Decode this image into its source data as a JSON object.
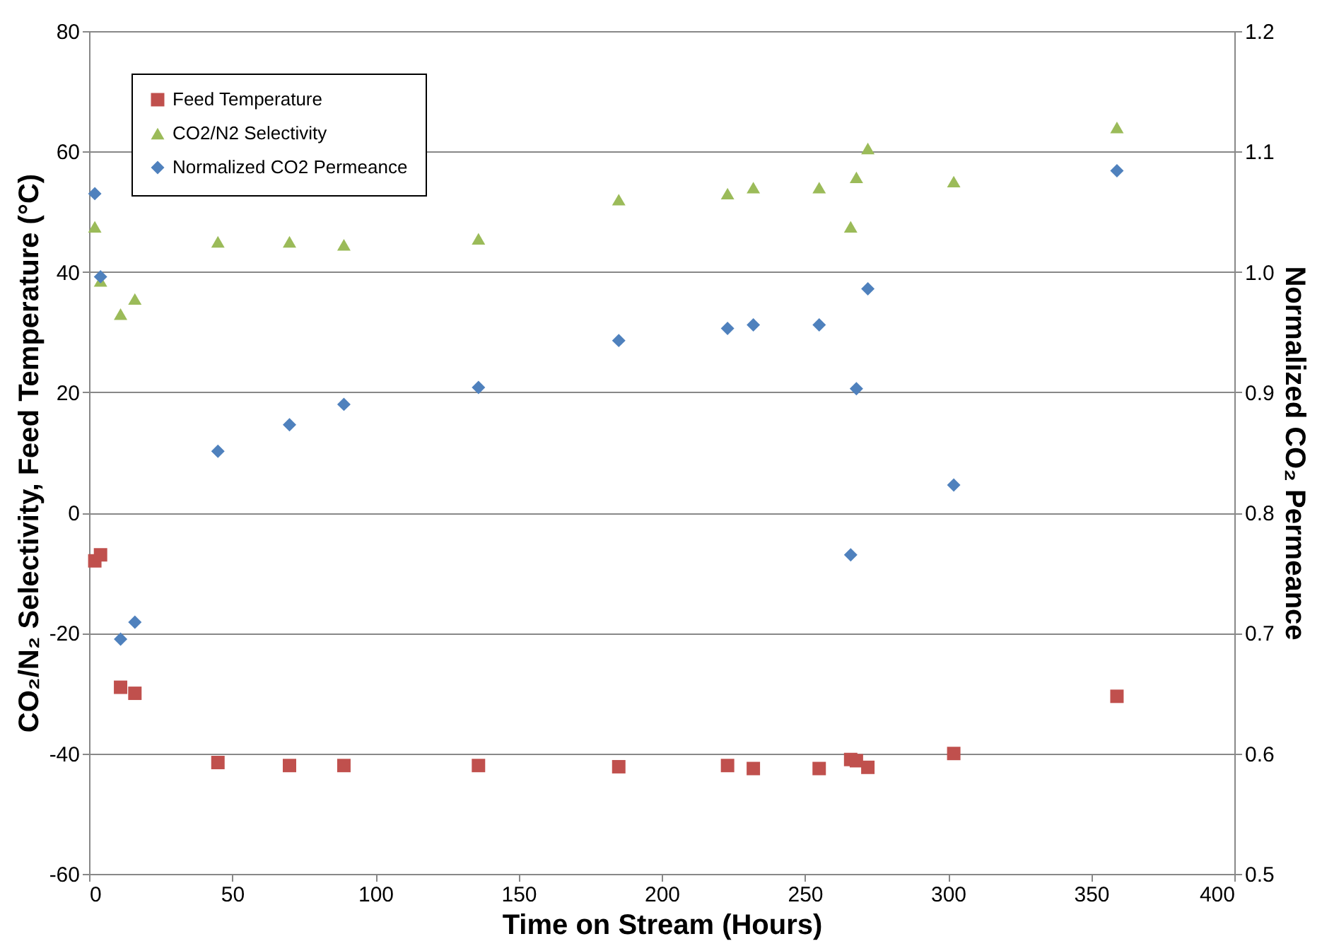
{
  "chart_data": {
    "type": "scatter",
    "xlabel": "Time on Stream (Hours)",
    "ylabel": "CO₂/N₂ Selectivity, Feed Temperature (°C)",
    "y2label": "Normalized CO₂ Permeance",
    "x": [
      2,
      4,
      11,
      16,
      45,
      70,
      89,
      136,
      185,
      223,
      232,
      255,
      266,
      268,
      272,
      302,
      359
    ],
    "series": [
      {
        "name": "Feed Temperature",
        "color": "#c0504d",
        "marker": "square",
        "values": [
          -8,
          -7,
          -29,
          -30,
          -41.5,
          -42,
          -42,
          -42,
          -42.2,
          -42,
          -42.5,
          -42.5,
          -41,
          -41.2,
          -42.3,
          -40,
          -30.5
        ]
      },
      {
        "name": "CO2/N2 Selectivity",
        "color": "#9bbb59",
        "marker": "triangle",
        "values": [
          47.5,
          38.5,
          33,
          35.5,
          45,
          45,
          44.5,
          45.5,
          52,
          53,
          54,
          54,
          47.5,
          55.7,
          60.5,
          55,
          64
        ]
      },
      {
        "name": "Normalized CO2 Permeance",
        "color": "#4f81bd",
        "marker": "diamond",
        "axis": "y2",
        "values": [
          1.065,
          0.996,
          0.695,
          0.709,
          0.851,
          0.873,
          0.89,
          0.904,
          0.943,
          0.953,
          0.956,
          0.956,
          0.765,
          0.903,
          0.986,
          0.823,
          1.084
        ]
      }
    ],
    "xlim": [
      0,
      400
    ],
    "xticks": [
      0,
      50,
      100,
      150,
      200,
      250,
      300,
      350,
      400
    ],
    "ylim": [
      -60,
      80
    ],
    "yticks": [
      -60,
      -40,
      -20,
      0,
      20,
      40,
      60,
      80
    ],
    "y2lim": [
      0.5,
      1.2
    ],
    "y2ticks": [
      0.5,
      0.6,
      0.7,
      0.8,
      0.9,
      {
        "value": 1,
        "label": "1.0"
      },
      1.1,
      1.2
    ],
    "grid": "y",
    "legend": "top left"
  }
}
